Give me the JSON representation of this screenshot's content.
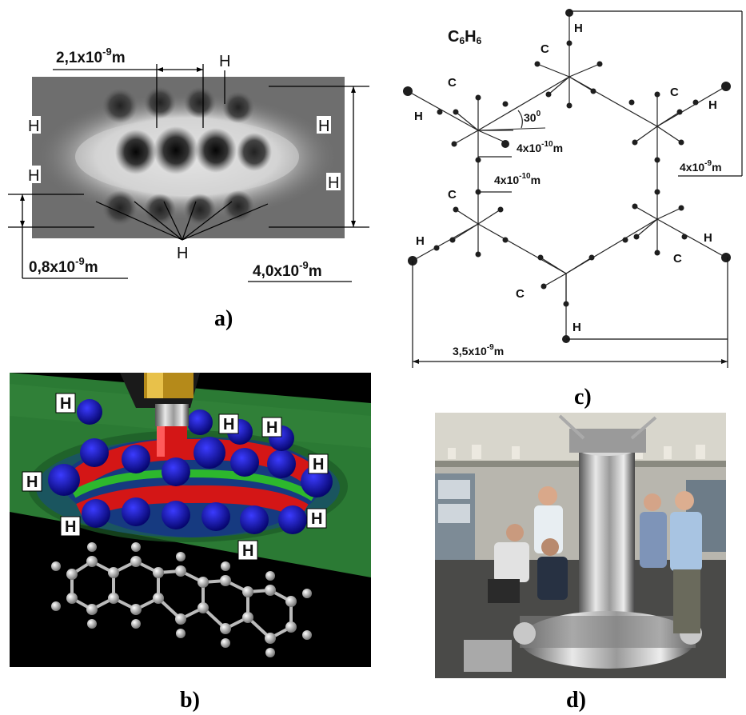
{
  "panel_a": {
    "dim_top": "2,1x10",
    "dim_top_exp": "-9",
    "dim_top_unit": "m",
    "dim_left": "0,8x10",
    "dim_left_exp": "-9",
    "dim_left_unit": "m",
    "dim_right": "4,0x10",
    "dim_right_exp": "-9",
    "dim_right_unit": "m",
    "h": "H",
    "caption": "a)"
  },
  "panel_b": {
    "h": "H",
    "caption": "b)"
  },
  "panel_c": {
    "formula_c": "C",
    "formula_sub1": "6",
    "formula_h": "H",
    "formula_sub2": "6",
    "angle": "30",
    "angle_unit": "0",
    "bond_a": "4x10",
    "bond_a_exp": "-10",
    "bond_a_unit": "m",
    "bond_b": "4x10",
    "bond_b_exp": "-10",
    "bond_b_unit": "m",
    "dim_right": "4x10",
    "dim_right_exp": "-9",
    "dim_right_unit": "m",
    "dim_bottom": "3,5x10",
    "dim_bottom_exp": "-9",
    "dim_bottom_unit": "m",
    "c": "C",
    "h": "H",
    "caption": "c)"
  },
  "panel_d": {
    "caption": "d)"
  }
}
